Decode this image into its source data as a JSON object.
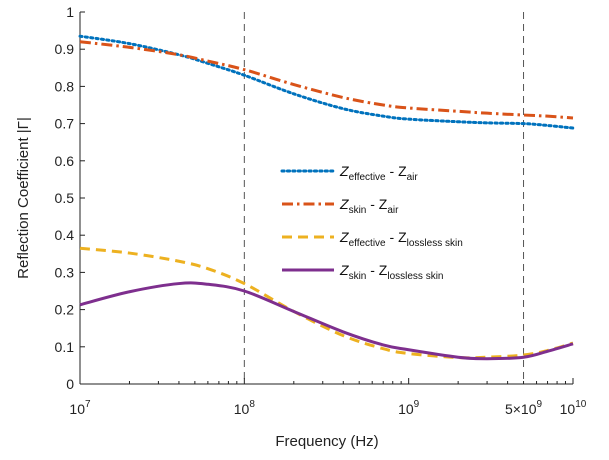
{
  "chart_data": {
    "type": "line",
    "xlabel": "Frequency (Hz)",
    "ylabel": "Reflection Coefficient |Γ|",
    "x_scale": "log",
    "xlim": [
      10000000,
      10000000000
    ],
    "ylim": [
      0,
      1
    ],
    "grid": false,
    "legend_placement": "center-right",
    "x_ticks": [
      {
        "value": 10000000,
        "base": "10",
        "exp": "7"
      },
      {
        "value": 100000000,
        "base": "10",
        "exp": "8"
      },
      {
        "value": 1000000000,
        "base": "10",
        "exp": "9"
      },
      {
        "value": 5000000000,
        "base": "5×10",
        "exp": "9"
      },
      {
        "value": 10000000000,
        "base": "10",
        "exp": "10"
      }
    ],
    "y_ticks": [
      {
        "value": 0,
        "label": "0"
      },
      {
        "value": 0.1,
        "label": "0.1"
      },
      {
        "value": 0.2,
        "label": "0.2"
      },
      {
        "value": 0.3,
        "label": "0.3"
      },
      {
        "value": 0.4,
        "label": "0.4"
      },
      {
        "value": 0.5,
        "label": "0.5"
      },
      {
        "value": 0.6,
        "label": "0.6"
      },
      {
        "value": 0.7,
        "label": "0.7"
      },
      {
        "value": 0.8,
        "label": "0.8"
      },
      {
        "value": 0.9,
        "label": "0.9"
      },
      {
        "value": 1,
        "label": "1"
      }
    ],
    "reference_lines": [
      100000000,
      5000000000
    ],
    "x": [
      10000000,
      20000000,
      40000000,
      60000000,
      100000000,
      200000000,
      400000000,
      700000000,
      1000000000,
      2000000000,
      3000000000,
      5000000000,
      7000000000,
      10000000000
    ],
    "series": [
      {
        "name_main": "Z",
        "name_sub1": "effective",
        "name_mid": " - Z",
        "name_sub2": "air",
        "color": "#0072BD",
        "dash": "dotted",
        "values": [
          0.935,
          0.915,
          0.885,
          0.862,
          0.83,
          0.78,
          0.74,
          0.72,
          0.712,
          0.705,
          0.702,
          0.7,
          0.695,
          0.688
        ]
      },
      {
        "name_main": "Z",
        "name_sub1": "skin",
        "name_mid": " - Z",
        "name_sub2": "air",
        "color": "#D95319",
        "dash": "dashdot",
        "values": [
          0.92,
          0.905,
          0.885,
          0.868,
          0.845,
          0.805,
          0.77,
          0.75,
          0.742,
          0.733,
          0.728,
          0.723,
          0.72,
          0.715
        ]
      },
      {
        "name_main": "Z",
        "name_sub1": "effective",
        "name_mid": " - Z",
        "name_sub2": "lossless skin",
        "color": "#EDB120",
        "dash": "dashed",
        "values": [
          0.365,
          0.352,
          0.33,
          0.31,
          0.27,
          0.195,
          0.13,
          0.095,
          0.082,
          0.071,
          0.072,
          0.078,
          0.09,
          0.11
        ]
      },
      {
        "name_main": "Z",
        "name_sub1": "skin",
        "name_mid": " - Z",
        "name_sub2": "lossless skin",
        "color": "#7E2F8E",
        "dash": "solid",
        "values": [
          0.213,
          0.248,
          0.27,
          0.268,
          0.25,
          0.195,
          0.14,
          0.105,
          0.092,
          0.072,
          0.068,
          0.072,
          0.088,
          0.108
        ]
      }
    ]
  }
}
